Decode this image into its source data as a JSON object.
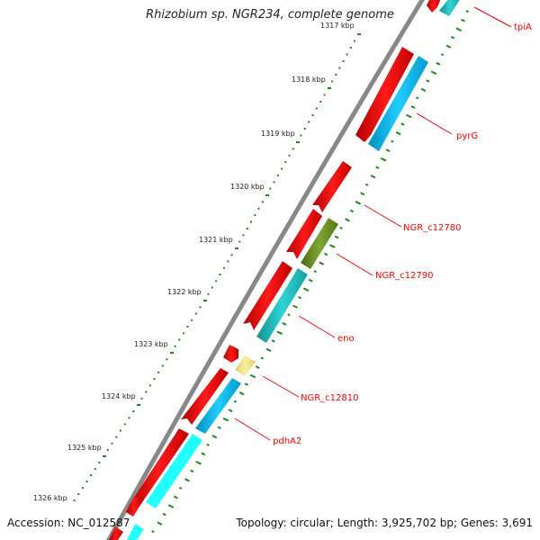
{
  "title": "Rhizobium sp. NGR234, complete genome",
  "footer": {
    "accession": "Accession: NC_012587",
    "info": "Topology: circular; Length: 3,925,702 bp; Genes: 3,691"
  },
  "ticks": [
    {
      "label": "1317 kbp",
      "kbp": 1317
    },
    {
      "label": "1318 kbp",
      "kbp": 1318
    },
    {
      "label": "1319 kbp",
      "kbp": 1319
    },
    {
      "label": "1320 kbp",
      "kbp": 1320
    },
    {
      "label": "1321 kbp",
      "kbp": 1321
    },
    {
      "label": "1322 kbp",
      "kbp": 1322
    },
    {
      "label": "1323 kbp",
      "kbp": 1323
    },
    {
      "label": "1324 kbp",
      "kbp": 1324
    },
    {
      "label": "1325 kbp",
      "kbp": 1325
    },
    {
      "label": "1326 kbp",
      "kbp": 1326
    }
  ],
  "gene_labels": [
    "tpiA",
    "pyrG",
    "NGR_c12780",
    "NGR_c12790",
    "eno",
    "NGR_c12810",
    "pdhA2"
  ],
  "colors": {
    "backbone": "#888888",
    "cds": "#ff0000",
    "gene_cyan": "#00c8ff",
    "gene_teal": "#20c8c8",
    "gene_olive": "#6b8e23",
    "gene_khaki": "#f0e68c",
    "gc_skew": "#1a8a1a",
    "tick_dots": "#1a8a1a",
    "label_red": "#ff0000"
  }
}
